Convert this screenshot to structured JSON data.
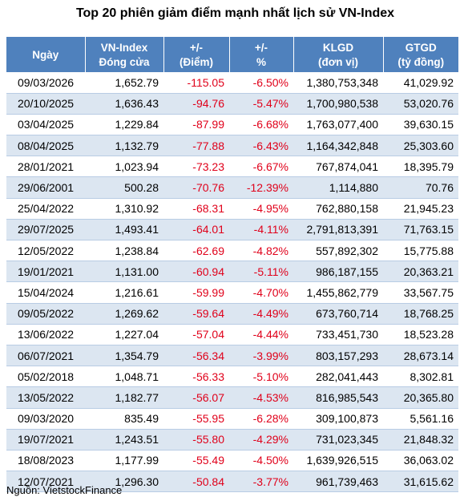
{
  "title": "Top 20 phiên giảm điểm mạnh nhất lịch sử VN-Index",
  "source": "Nguồn: VietstockFinance",
  "colors": {
    "header_bg": "#4f81bd",
    "stripe_bg": "#dce6f1",
    "negative_text": "#e0001a"
  },
  "chart_data": {
    "type": "table",
    "title": "Top 20 phiên giảm điểm mạnh nhất lịch sử VN-Index",
    "columns": [
      {
        "line1": "Ngày",
        "line2": ""
      },
      {
        "line1": "VN-Index",
        "line2": "Đóng cửa"
      },
      {
        "line1": "+/-",
        "line2": "(Điểm)"
      },
      {
        "line1": "+/-",
        "line2": "%"
      },
      {
        "line1": "KLGD",
        "line2": "(đơn vị)"
      },
      {
        "line1": "GTGD",
        "line2": "(tỷ đồng)"
      }
    ],
    "rows": [
      [
        "09/03/2026",
        "1,652.79",
        "-115.05",
        "-6.50%",
        "1,380,753,348",
        "41,029.92"
      ],
      [
        "20/10/2025",
        "1,636.43",
        "-94.76",
        "-5.47%",
        "1,700,980,538",
        "53,020.76"
      ],
      [
        "03/04/2025",
        "1,229.84",
        "-87.99",
        "-6.68%",
        "1,763,077,400",
        "39,630.15"
      ],
      [
        "08/04/2025",
        "1,132.79",
        "-77.88",
        "-6.43%",
        "1,164,342,848",
        "25,303.60"
      ],
      [
        "28/01/2021",
        "1,023.94",
        "-73.23",
        "-6.67%",
        "767,874,041",
        "18,395.79"
      ],
      [
        "29/06/2001",
        "500.28",
        "-70.76",
        "-12.39%",
        "1,114,880",
        "70.76"
      ],
      [
        "25/04/2022",
        "1,310.92",
        "-68.31",
        "-4.95%",
        "762,880,158",
        "21,945.23"
      ],
      [
        "29/07/2025",
        "1,493.41",
        "-64.01",
        "-4.11%",
        "2,791,813,391",
        "71,763.15"
      ],
      [
        "12/05/2022",
        "1,238.84",
        "-62.69",
        "-4.82%",
        "557,892,302",
        "15,775.88"
      ],
      [
        "19/01/2021",
        "1,131.00",
        "-60.94",
        "-5.11%",
        "986,187,155",
        "20,363.21"
      ],
      [
        "15/04/2024",
        "1,216.61",
        "-59.99",
        "-4.70%",
        "1,455,862,779",
        "33,567.75"
      ],
      [
        "09/05/2022",
        "1,269.62",
        "-59.64",
        "-4.49%",
        "673,760,714",
        "18,768.25"
      ],
      [
        "13/06/2022",
        "1,227.04",
        "-57.04",
        "-4.44%",
        "733,451,730",
        "18,523.28"
      ],
      [
        "06/07/2021",
        "1,354.79",
        "-56.34",
        "-3.99%",
        "803,157,293",
        "28,673.14"
      ],
      [
        "05/02/2018",
        "1,048.71",
        "-56.33",
        "-5.10%",
        "282,041,443",
        "8,302.81"
      ],
      [
        "13/05/2022",
        "1,182.77",
        "-56.07",
        "-4.53%",
        "816,985,543",
        "20,365.80"
      ],
      [
        "09/03/2020",
        "835.49",
        "-55.95",
        "-6.28%",
        "309,100,873",
        "5,561.16"
      ],
      [
        "19/07/2021",
        "1,243.51",
        "-55.80",
        "-4.29%",
        "731,023,345",
        "21,848.32"
      ],
      [
        "18/08/2023",
        "1,177.99",
        "-55.49",
        "-4.50%",
        "1,639,926,515",
        "36,063.02"
      ],
      [
        "12/07/2021",
        "1,296.30",
        "-50.84",
        "-3.77%",
        "961,739,463",
        "31,615.62"
      ]
    ]
  }
}
